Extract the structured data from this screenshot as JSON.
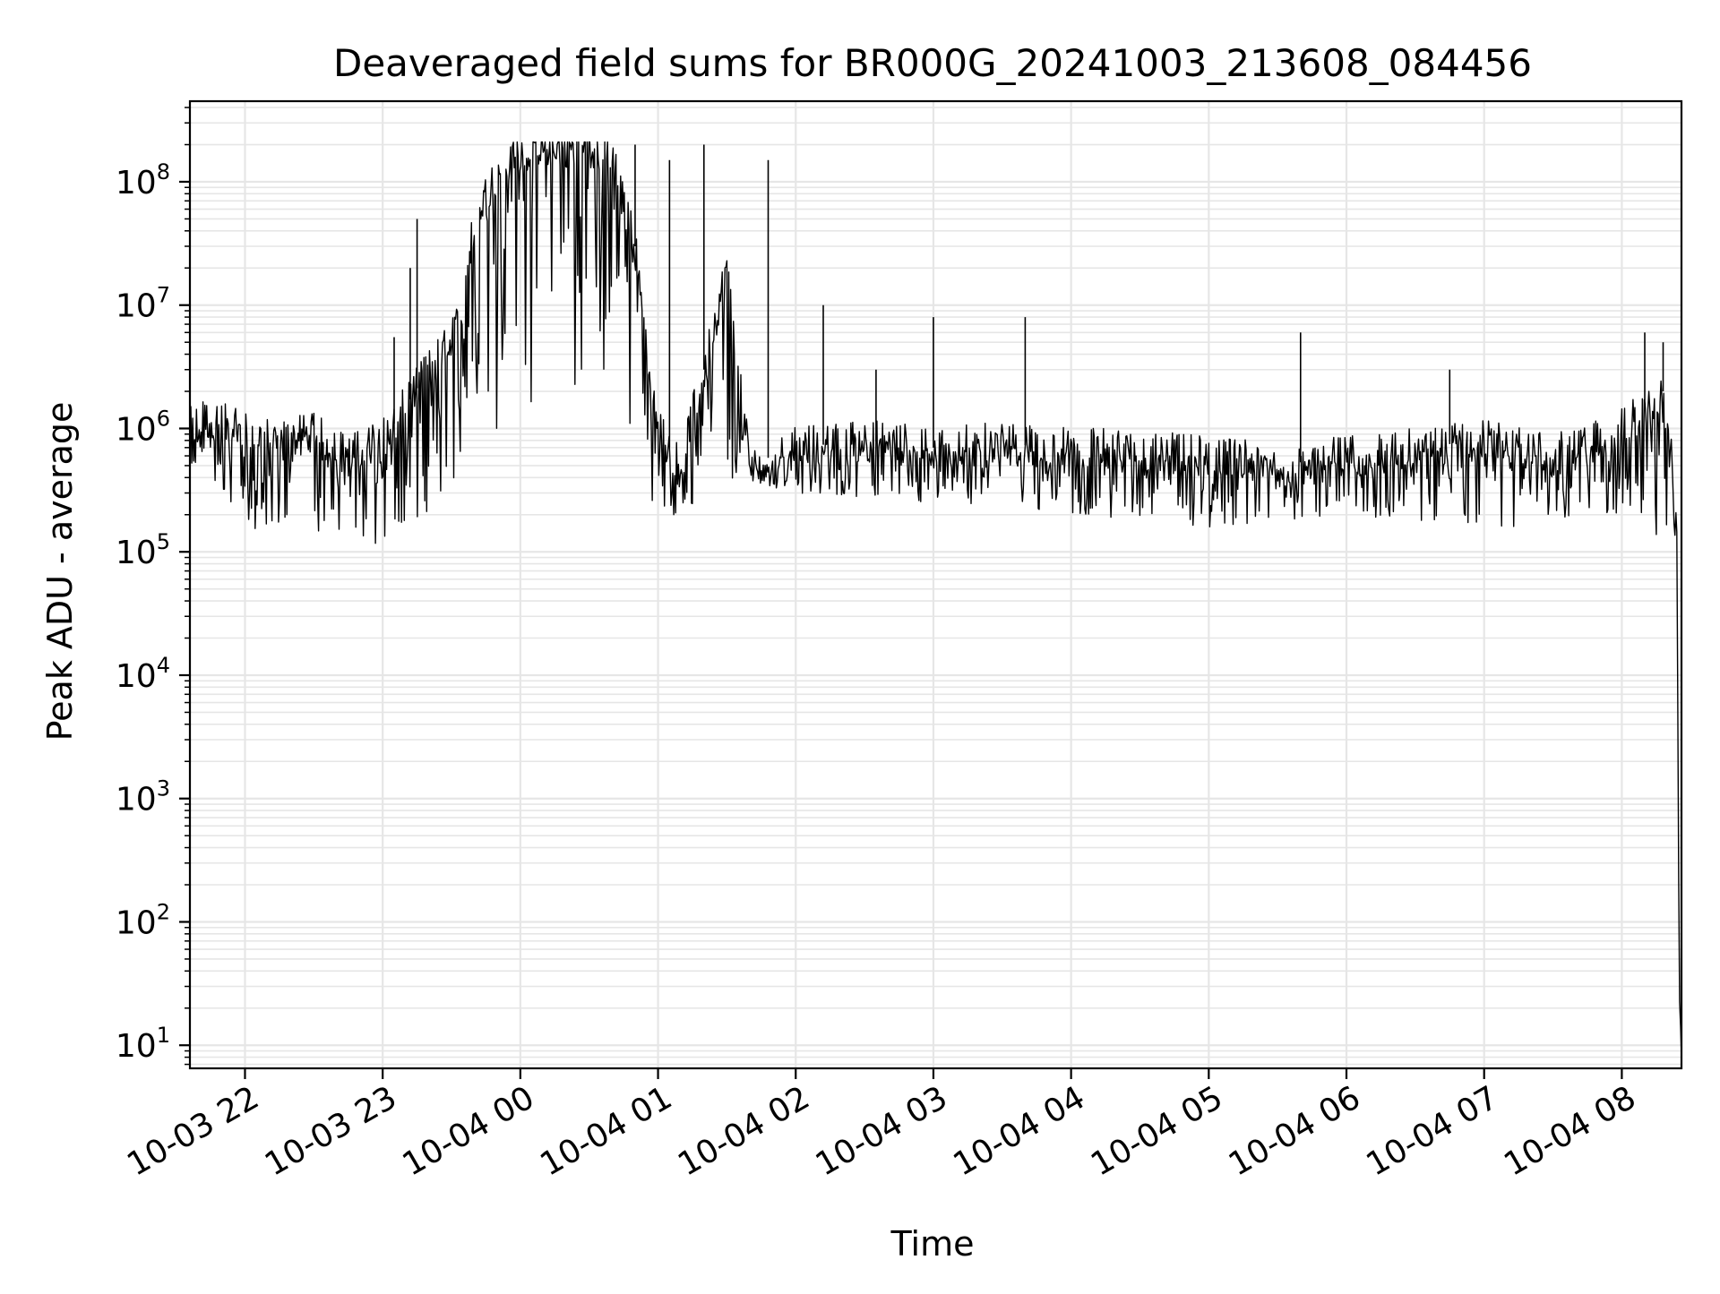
{
  "chart_data": {
    "type": "line",
    "title": "Deaveraged field sums for BR000G_20241003_213608_084456",
    "xlabel": "Time",
    "ylabel": "Peak ADU - average",
    "yscale": "log",
    "ylim": [
      6.5,
      450000000
    ],
    "xlim": [
      "2024-10-03 21:36",
      "2024-10-04 08:26"
    ],
    "grid": true,
    "x_ticks": [
      "10-03 22",
      "10-03 23",
      "10-04 00",
      "10-04 01",
      "10-04 02",
      "10-04 03",
      "10-04 04",
      "10-04 05",
      "10-04 06",
      "10-04 07",
      "10-04 08"
    ],
    "y_ticks": [
      {
        "base": "10",
        "exp": "1"
      },
      {
        "base": "10",
        "exp": "2"
      },
      {
        "base": "10",
        "exp": "3"
      },
      {
        "base": "10",
        "exp": "4"
      },
      {
        "base": "10",
        "exp": "5"
      },
      {
        "base": "10",
        "exp": "6"
      },
      {
        "base": "10",
        "exp": "7"
      },
      {
        "base": "10",
        "exp": "8"
      }
    ],
    "series": [
      {
        "color": "#000000",
        "x": [
          "2024-10-03 21:36",
          "2024-10-03 21:45",
          "2024-10-03 22:00",
          "2024-10-03 22:15",
          "2024-10-03 22:30",
          "2024-10-03 22:45",
          "2024-10-03 23:00",
          "2024-10-03 23:10",
          "2024-10-03 23:20",
          "2024-10-03 23:30",
          "2024-10-03 23:35",
          "2024-10-03 23:40",
          "2024-10-03 23:50",
          "2024-10-04 00:00",
          "2024-10-04 00:10",
          "2024-10-04 00:20",
          "2024-10-04 00:30",
          "2024-10-04 00:40",
          "2024-10-04 00:50",
          "2024-10-04 01:00",
          "2024-10-04 01:10",
          "2024-10-04 01:20",
          "2024-10-04 01:30",
          "2024-10-04 01:40",
          "2024-10-04 01:50",
          "2024-10-04 02:00",
          "2024-10-04 02:30",
          "2024-10-04 03:00",
          "2024-10-04 03:30",
          "2024-10-04 04:00",
          "2024-10-04 04:30",
          "2024-10-04 05:00",
          "2024-10-04 05:30",
          "2024-10-04 06:00",
          "2024-10-04 06:30",
          "2024-10-04 07:00",
          "2024-10-04 07:30",
          "2024-10-04 07:50",
          "2024-10-04 08:00",
          "2024-10-04 08:10",
          "2024-10-04 08:18",
          "2024-10-04 08:22",
          "2024-10-04 08:24",
          "2024-10-04 08:25",
          "2024-10-04 08:26"
        ],
        "y": [
          1000000,
          1200000,
          900000,
          800000,
          900000,
          600000,
          800000,
          1500000,
          3000000,
          5000000,
          10000000,
          50000000,
          120000000,
          180000000,
          200000000,
          195000000,
          200000000,
          150000000,
          30000000,
          1000000,
          500000,
          3000000,
          20000000,
          500000,
          600000,
          700000,
          800000,
          700000,
          750000,
          700000,
          650000,
          600000,
          500000,
          600000,
          700000,
          800000,
          600000,
          800000,
          1000000,
          1500000,
          2000000,
          500000,
          200000,
          30,
          10
        ],
        "x_peaks": [
          "2024-10-03 23:05",
          "2024-10-03 23:12",
          "2024-10-03 23:15",
          "2024-10-04 00:50",
          "2024-10-04 01:05",
          "2024-10-04 01:20",
          "2024-10-04 01:48",
          "2024-10-04 02:12",
          "2024-10-04 02:35",
          "2024-10-04 03:00",
          "2024-10-04 03:40",
          "2024-10-04 05:40",
          "2024-10-04 06:45",
          "2024-10-04 08:10",
          "2024-10-04 08:18"
        ],
        "y_peaks": [
          5500000,
          20000000,
          50000000,
          200000000,
          150000000,
          200000000,
          150000000,
          10000000,
          3000000,
          8000000,
          8000000,
          6000000,
          3000000,
          6000000,
          5000000
        ],
        "band_low_x": [
          "2024-10-03 21:36",
          "2024-10-03 22:00",
          "2024-10-03 22:30",
          "2024-10-03 23:00",
          "2024-10-03 23:30",
          "2024-10-04 00:40",
          "2024-10-04 01:00",
          "2024-10-04 01:30",
          "2024-10-04 02:00",
          "2024-10-04 03:00",
          "2024-10-04 04:00",
          "2024-10-04 05:00",
          "2024-10-04 06:00",
          "2024-10-04 07:00",
          "2024-10-04 08:00",
          "2024-10-04 08:20"
        ],
        "band_low_y": [
          500000,
          150000,
          150000,
          100000,
          300000,
          3000000,
          150000,
          400000,
          300000,
          250000,
          200000,
          150000,
          200000,
          150000,
          200000,
          100000
        ]
      }
    ]
  }
}
